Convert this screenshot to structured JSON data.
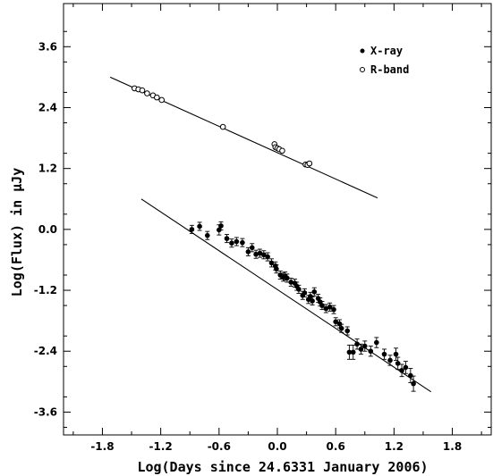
{
  "chart_data": {
    "type": "scatter",
    "title": "",
    "xlabel": "Log(Days since 24.6331 January 2006)",
    "ylabel": "Log(Flux) in μJy",
    "xlim": [
      -2.2,
      2.2
    ],
    "ylim": [
      -4.05,
      4.45
    ],
    "x_ticks": [
      -1.8,
      -1.2,
      -0.6,
      0.0,
      0.6,
      1.2,
      1.8
    ],
    "x_tick_labels": [
      "-1.8",
      "-1.2",
      "-0.6",
      "0.0",
      "0.6",
      "1.2",
      "1.8"
    ],
    "y_ticks": [
      3.6,
      2.4,
      1.2,
      0.0,
      -1.2,
      -2.4,
      -3.6
    ],
    "y_tick_labels": [
      "3.6",
      "2.4",
      "1.2",
      "0.0",
      "-1.2",
      "-2.4",
      "-3.6"
    ],
    "grid": false,
    "legend": {
      "placement": "top-right",
      "entries": [
        {
          "label": "X-ray",
          "marker": "filled-circle"
        },
        {
          "label": "R-band",
          "marker": "open-circle"
        }
      ]
    },
    "series": [
      {
        "name": "X-ray",
        "marker": "filled-circle",
        "points": [
          {
            "x": -0.88,
            "y": 0.0,
            "err": 0.08
          },
          {
            "x": -0.8,
            "y": 0.06,
            "err": 0.08
          },
          {
            "x": -0.72,
            "y": -0.12,
            "err": 0.08
          },
          {
            "x": -0.6,
            "y": -0.01,
            "err": 0.1
          },
          {
            "x": -0.58,
            "y": 0.07,
            "err": 0.08
          },
          {
            "x": -0.52,
            "y": -0.18,
            "err": 0.08
          },
          {
            "x": -0.47,
            "y": -0.27,
            "err": 0.08
          },
          {
            "x": -0.42,
            "y": -0.24,
            "err": 0.08
          },
          {
            "x": -0.36,
            "y": -0.26,
            "err": 0.08
          },
          {
            "x": -0.3,
            "y": -0.44,
            "err": 0.08
          },
          {
            "x": -0.26,
            "y": -0.36,
            "err": 0.08
          },
          {
            "x": -0.22,
            "y": -0.49,
            "err": 0.08
          },
          {
            "x": -0.18,
            "y": -0.47,
            "err": 0.08
          },
          {
            "x": -0.14,
            "y": -0.5,
            "err": 0.08
          },
          {
            "x": -0.1,
            "y": -0.54,
            "err": 0.08
          },
          {
            "x": -0.06,
            "y": -0.66,
            "err": 0.08
          },
          {
            "x": -0.02,
            "y": -0.72,
            "err": 0.08
          },
          {
            "x": -0.01,
            "y": -0.78,
            "err": 0.08
          },
          {
            "x": 0.03,
            "y": -0.9,
            "err": 0.08
          },
          {
            "x": 0.06,
            "y": -0.94,
            "err": 0.08
          },
          {
            "x": 0.08,
            "y": -0.92,
            "err": 0.08
          },
          {
            "x": 0.1,
            "y": -0.96,
            "err": 0.08
          },
          {
            "x": 0.14,
            "y": -1.04,
            "err": 0.08
          },
          {
            "x": 0.18,
            "y": -1.06,
            "err": 0.08
          },
          {
            "x": 0.2,
            "y": -1.12,
            "err": 0.08
          },
          {
            "x": 0.22,
            "y": -1.18,
            "err": 0.08
          },
          {
            "x": 0.26,
            "y": -1.3,
            "err": 0.08
          },
          {
            "x": 0.28,
            "y": -1.25,
            "err": 0.08
          },
          {
            "x": 0.32,
            "y": -1.38,
            "err": 0.08
          },
          {
            "x": 0.34,
            "y": -1.32,
            "err": 0.08
          },
          {
            "x": 0.36,
            "y": -1.41,
            "err": 0.08
          },
          {
            "x": 0.38,
            "y": -1.23,
            "err": 0.08
          },
          {
            "x": 0.42,
            "y": -1.36,
            "err": 0.08
          },
          {
            "x": 0.44,
            "y": -1.43,
            "err": 0.08
          },
          {
            "x": 0.46,
            "y": -1.5,
            "err": 0.08
          },
          {
            "x": 0.5,
            "y": -1.56,
            "err": 0.08
          },
          {
            "x": 0.54,
            "y": -1.53,
            "err": 0.08
          },
          {
            "x": 0.58,
            "y": -1.58,
            "err": 0.08
          },
          {
            "x": 0.6,
            "y": -1.82,
            "err": 0.08
          },
          {
            "x": 0.64,
            "y": -1.86,
            "err": 0.08
          },
          {
            "x": 0.66,
            "y": -1.95,
            "err": 0.08
          },
          {
            "x": 0.72,
            "y": -2.0,
            "err": 0.08
          },
          {
            "x": 0.74,
            "y": -2.42,
            "err": 0.14
          },
          {
            "x": 0.78,
            "y": -2.42,
            "err": 0.14
          },
          {
            "x": 0.82,
            "y": -2.26,
            "err": 0.1
          },
          {
            "x": 0.86,
            "y": -2.36,
            "err": 0.1
          },
          {
            "x": 0.9,
            "y": -2.3,
            "err": 0.1
          },
          {
            "x": 0.96,
            "y": -2.4,
            "err": 0.1
          },
          {
            "x": 1.02,
            "y": -2.23,
            "err": 0.1
          },
          {
            "x": 1.1,
            "y": -2.46,
            "err": 0.1
          },
          {
            "x": 1.16,
            "y": -2.58,
            "err": 0.1
          },
          {
            "x": 1.22,
            "y": -2.46,
            "err": 0.12
          },
          {
            "x": 1.24,
            "y": -2.64,
            "err": 0.12
          },
          {
            "x": 1.28,
            "y": -2.78,
            "err": 0.12
          },
          {
            "x": 1.32,
            "y": -2.72,
            "err": 0.12
          },
          {
            "x": 1.37,
            "y": -2.88,
            "err": 0.14
          },
          {
            "x": 1.4,
            "y": -3.04,
            "err": 0.15
          }
        ],
        "fit_line": {
          "x": [
            -1.4,
            1.58
          ],
          "y": [
            0.6,
            -3.2
          ]
        }
      },
      {
        "name": "R-band",
        "marker": "open-circle",
        "points": [
          {
            "x": -1.47,
            "y": 2.78
          },
          {
            "x": -1.43,
            "y": 2.76
          },
          {
            "x": -1.39,
            "y": 2.74
          },
          {
            "x": -1.34,
            "y": 2.68
          },
          {
            "x": -1.28,
            "y": 2.64
          },
          {
            "x": -1.24,
            "y": 2.6
          },
          {
            "x": -1.19,
            "y": 2.55
          },
          {
            "x": -0.56,
            "y": 2.02
          },
          {
            "x": -0.03,
            "y": 1.68
          },
          {
            "x": -0.02,
            "y": 1.62
          },
          {
            "x": 0.0,
            "y": 1.6
          },
          {
            "x": 0.02,
            "y": 1.58
          },
          {
            "x": 0.05,
            "y": 1.55
          },
          {
            "x": 0.29,
            "y": 1.28
          },
          {
            "x": 0.31,
            "y": 1.27
          },
          {
            "x": 0.33,
            "y": 1.3
          }
        ],
        "fit_line": {
          "x": [
            -1.72,
            1.03
          ],
          "y": [
            3.0,
            0.62
          ]
        }
      }
    ]
  }
}
